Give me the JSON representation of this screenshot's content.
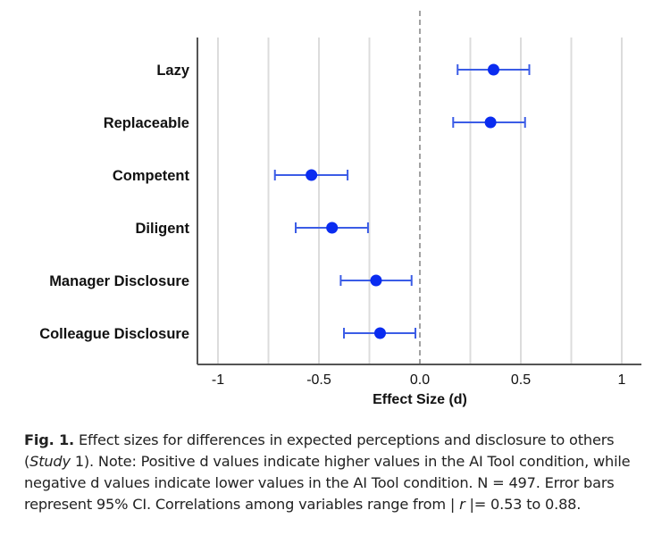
{
  "chart_data": {
    "type": "forest",
    "categories": [
      "Lazy",
      "Replaceable",
      "Competent",
      "Diligent",
      "Manager Disclosure",
      "Colleague Disclosure"
    ],
    "estimates": [
      0.365,
      0.35,
      -0.537,
      -0.435,
      -0.217,
      -0.197
    ],
    "ci_lower": [
      0.187,
      0.165,
      -0.718,
      -0.615,
      -0.392,
      -0.376
    ],
    "ci_upper": [
      0.542,
      0.521,
      -0.358,
      -0.257,
      -0.041,
      -0.022
    ],
    "xlabel": "Effect Size (d)",
    "xlim": [
      -1.1,
      1.1
    ],
    "xticks": [
      -1,
      -0.5,
      0,
      0.5,
      1
    ],
    "xtick_labels": [
      "-1",
      "-0.5",
      "0.0",
      "0.5",
      "1"
    ],
    "gridlines": [
      -1,
      -0.75,
      -0.5,
      -0.25,
      0.25,
      0.5,
      0.75,
      1
    ],
    "reference_line": 0,
    "grid": true,
    "color": "#0a2cf0",
    "ci_color": "#3b5ce6"
  },
  "caption": {
    "label": "Fig. 1.",
    "text1": "  Effect sizes for differences in expected perceptions and disclosure to others (",
    "italic1": "Study",
    "text2": " 1). Note: Positive d values indicate higher values in the AI Tool condition, while negative d values indicate lower values in the AI Tool condition. N = 497. Error bars represent 95% CI. Correlations among variables range from | ",
    "italic2": "r",
    "text3": " |= 0.53 to 0.88."
  }
}
